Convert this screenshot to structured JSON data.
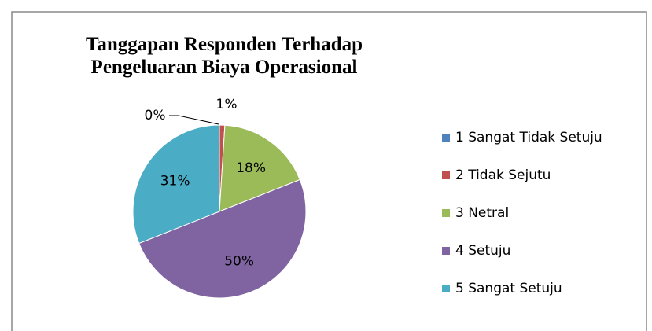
{
  "chart_data": {
    "type": "pie",
    "title": "Tanggapan Responden Terhadap Pengeluaran Biaya Operasional",
    "categories": [
      "1 Sangat Tidak Setuju",
      "2 Tidak Sejutu",
      "3 Netral",
      "4 Setuju",
      "5 Sangat Setuju"
    ],
    "values": [
      0,
      1,
      18,
      50,
      31
    ],
    "value_labels": [
      "0%",
      "1%",
      "18%",
      "50%",
      "31%"
    ],
    "colors": [
      "#4f81bd",
      "#c0504d",
      "#9bbb59",
      "#8064a2",
      "#4bacc6"
    ],
    "legend": "right"
  }
}
